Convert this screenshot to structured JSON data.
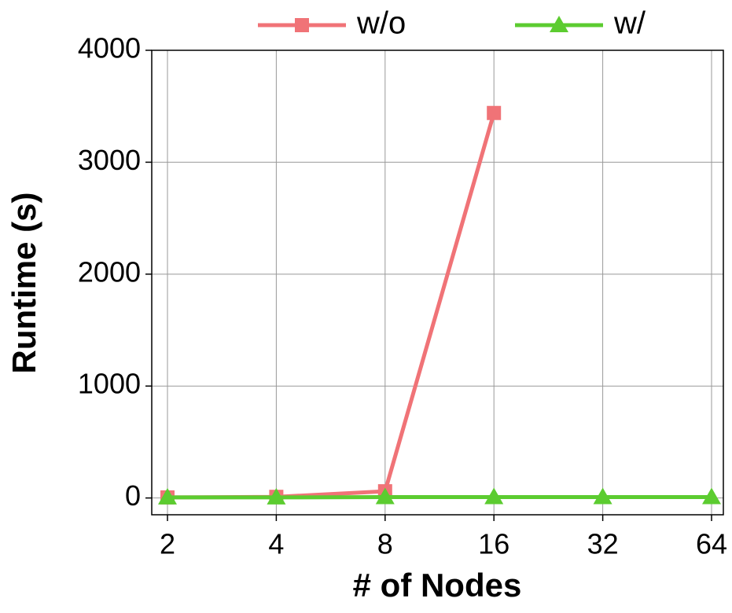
{
  "chart_data": {
    "type": "line",
    "x_label": "# of Nodes",
    "y_label": "Runtime (s)",
    "categories": [
      "2",
      "4",
      "8",
      "16",
      "32",
      "64"
    ],
    "series": [
      {
        "name": "w/o",
        "color": "#f07377",
        "marker": "square",
        "values": [
          5,
          10,
          60,
          3440,
          null,
          null
        ]
      },
      {
        "name": "w/",
        "color": "#5ccc30",
        "marker": "triangle",
        "values": [
          5,
          5,
          8,
          8,
          8,
          8
        ]
      }
    ],
    "ylim": [
      -150,
      4000
    ],
    "yticks": [
      0,
      1000,
      2000,
      3000,
      4000
    ],
    "grid": true,
    "legend": "top"
  }
}
